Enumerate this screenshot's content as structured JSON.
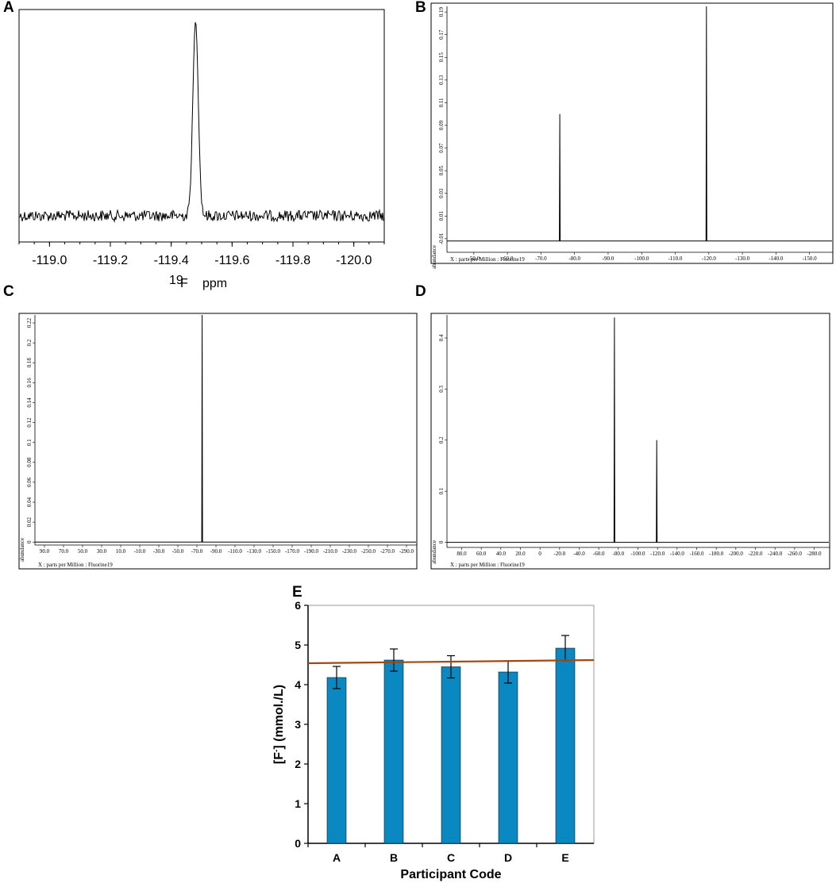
{
  "panel_letters": {
    "a": "A",
    "b": "B",
    "c": "C",
    "d": "D",
    "e": "E"
  },
  "chart_data": [
    {
      "panel": "A",
      "type": "line",
      "description_visible": "19F NMR spectrum with a single peak",
      "xlabel": {
        "superscript": "19",
        "main": "F",
        "unit": "ppm"
      },
      "x_ticks": [
        -119.0,
        -119.2,
        -119.4,
        -119.6,
        -119.8,
        -120.0
      ],
      "x_tick_labels": [
        "-119.0",
        "-119.2",
        "-119.4",
        "-119.6",
        "-119.8",
        "-120.0"
      ],
      "xlim": [
        -118.9,
        -120.1
      ],
      "peaks": [
        {
          "x": -119.48,
          "y": 1.0
        }
      ],
      "baseline": 0.0
    },
    {
      "panel": "B",
      "type": "line",
      "xlabel": "X : parts per Million : Fluorine19",
      "ylabel": "abundance",
      "x_tick_labels": [
        "-50.0",
        "-60.0",
        "-70.0",
        "-80.0",
        "-90.0",
        "-100.0",
        "-110.0",
        "-120.0",
        "-130.0",
        "-140.0",
        "-150.0"
      ],
      "x_ticks": [
        -50,
        -60,
        -70,
        -80,
        -90,
        -100,
        -110,
        -120,
        -130,
        -140,
        -150
      ],
      "y_tick_labels": [
        "-0.01",
        "0.01",
        "0.03",
        "0.05",
        "0.07",
        "0.09",
        "0.11",
        "0.13",
        "0.15",
        "0.17",
        "0.19"
      ],
      "y_ticks": [
        -0.01,
        0.01,
        0.03,
        0.05,
        0.07,
        0.09,
        0.11,
        0.13,
        0.15,
        0.17,
        0.19
      ],
      "xlim": [
        -42,
        -156
      ],
      "ylim": [
        -0.022,
        0.195
      ],
      "peaks": [
        {
          "x": -75.6,
          "y": 0.1
        },
        {
          "x": -119.3,
          "y": 0.195
        }
      ],
      "baseline": -0.012
    },
    {
      "panel": "C",
      "type": "line",
      "xlabel": "X : parts per Million : Fluorine19",
      "ylabel": "abundance",
      "x_tick_labels": [
        "90.0",
        "70.0",
        "50.0",
        "30.0",
        "10.0",
        "-10.0",
        "-30.0",
        "-50.0",
        "-70.0",
        "-90.0",
        "-110.0",
        "-130.0",
        "-150.0",
        "-170.0",
        "-190.0",
        "-210.0",
        "-230.0",
        "-250.0",
        "-270.0",
        "-290.0"
      ],
      "x_ticks": [
        90,
        70,
        50,
        30,
        10,
        -10,
        -30,
        -50,
        -70,
        -90,
        -110,
        -130,
        -150,
        -170,
        -190,
        -210,
        -230,
        -250,
        -270,
        -290
      ],
      "y_tick_labels": [
        "0",
        "0.02",
        "0.04",
        "0.06",
        "0.08",
        "0.1",
        "0.12",
        "0.14",
        "0.16",
        "0.18",
        "0.2",
        "0.22"
      ],
      "y_ticks": [
        0,
        0.02,
        0.04,
        0.06,
        0.08,
        0.1,
        0.12,
        0.14,
        0.16,
        0.18,
        0.2,
        0.22
      ],
      "xlim": [
        100,
        -300
      ],
      "ylim": [
        -0.003,
        0.228
      ],
      "peaks": [
        {
          "x": -75.5,
          "y": 0.228
        }
      ],
      "baseline": 0.0
    },
    {
      "panel": "D",
      "type": "line",
      "xlabel": "X : parts per Million : Fluorine19",
      "ylabel": "abundance",
      "x_tick_labels": [
        "80.0",
        "60.0",
        "40.0",
        "20.0",
        "0",
        "-20.0",
        "-40.0",
        "-60.0",
        "-80.0",
        "-100.0",
        "-120.0",
        "-140.0",
        "-160.0",
        "-180.0",
        "-200.0",
        "-220.0",
        "-240.0",
        "-260.0",
        "-280.0"
      ],
      "x_ticks": [
        80,
        60,
        40,
        20,
        0,
        -20,
        -40,
        -60,
        -80,
        -100,
        -120,
        -140,
        -160,
        -180,
        -200,
        -220,
        -240,
        -260,
        -280
      ],
      "y_tick_labels": [
        "0",
        "0.1",
        "0.2",
        "0.3",
        "0.4"
      ],
      "y_ticks": [
        0,
        0.1,
        0.2,
        0.3,
        0.4
      ],
      "xlim": [
        95,
        -295
      ],
      "ylim": [
        -0.01,
        0.445
      ],
      "peaks": [
        {
          "x": -76.0,
          "y": 0.44
        },
        {
          "x": -119.2,
          "y": 0.2
        }
      ],
      "baseline": 0.0
    },
    {
      "panel": "E",
      "type": "bar",
      "categories": [
        "A",
        "B",
        "C",
        "D",
        "E"
      ],
      "values": [
        4.18,
        4.62,
        4.45,
        4.32,
        4.92
      ],
      "errors": [
        0.28,
        0.28,
        0.28,
        0.28,
        0.32
      ],
      "reference_line": 4.58,
      "xlabel": "Participant Code",
      "ylabel": {
        "prefix": "[F",
        "superscript": "-",
        "suffix": "] (mmol./L)"
      },
      "ylim": [
        0,
        6
      ],
      "y_ticks": [
        0,
        1,
        2,
        3,
        4,
        5,
        6
      ],
      "bar_color": "#0a88c2",
      "reference_line_color": "#a04a12"
    }
  ]
}
